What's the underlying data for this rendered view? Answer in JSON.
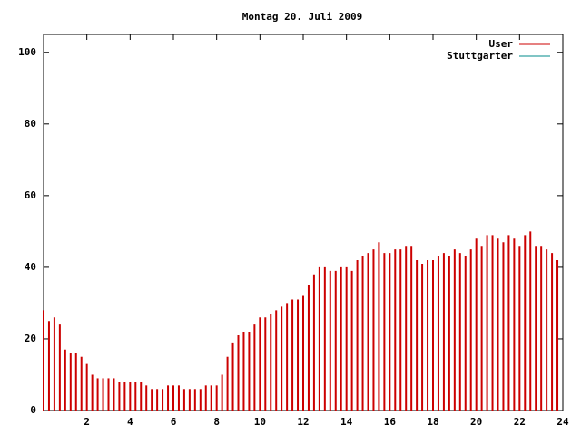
{
  "chart_data": {
    "type": "impulses",
    "title": "Montag 20. Juli 2009",
    "x": [
      0,
      0.25,
      0.5,
      0.75,
      1,
      1.25,
      1.5,
      1.75,
      2,
      2.25,
      2.5,
      2.75,
      3,
      3.25,
      3.5,
      3.75,
      4,
      4.25,
      4.5,
      4.75,
      5,
      5.25,
      5.5,
      5.75,
      6,
      6.25,
      6.5,
      6.75,
      7,
      7.25,
      7.5,
      7.75,
      8,
      8.25,
      8.5,
      8.75,
      9,
      9.25,
      9.5,
      9.75,
      10,
      10.25,
      10.5,
      10.75,
      11,
      11.25,
      11.5,
      11.75,
      12,
      12.25,
      12.5,
      12.75,
      13,
      13.25,
      13.5,
      13.75,
      14,
      14.25,
      14.5,
      14.75,
      15,
      15.25,
      15.5,
      15.75,
      16,
      16.25,
      16.5,
      16.75,
      17,
      17.25,
      17.5,
      17.75,
      18,
      18.25,
      18.5,
      18.75,
      19,
      19.25,
      19.5,
      19.75,
      20,
      20.25,
      20.5,
      20.75,
      21,
      21.25,
      21.5,
      21.75,
      22,
      22.25,
      22.5,
      22.75,
      23,
      23.25,
      23.5,
      23.75
    ],
    "series": [
      {
        "name": "User",
        "color": "#cc0000",
        "values": [
          28,
          25,
          26,
          24,
          17,
          16,
          16,
          15,
          13,
          10,
          9,
          9,
          9,
          9,
          8,
          8,
          8,
          8,
          8,
          7,
          6,
          6,
          6,
          7,
          7,
          7,
          6,
          6,
          6,
          6,
          7,
          7,
          7,
          10,
          15,
          19,
          21,
          22,
          22,
          24,
          26,
          26,
          27,
          28,
          29,
          30,
          31,
          31,
          32,
          35,
          38,
          40,
          40,
          39,
          39,
          40,
          40,
          39,
          42,
          43,
          44,
          45,
          47,
          44,
          44,
          45,
          45,
          46,
          46,
          42,
          41,
          42,
          42,
          43,
          44,
          43,
          45,
          44,
          43,
          45,
          48,
          46,
          49,
          49,
          48,
          47,
          49,
          48,
          46,
          49,
          50,
          46,
          46,
          45,
          44,
          42
        ]
      },
      {
        "name": "Stuttgarter",
        "color": "#008b8b",
        "values": [
          null,
          null,
          null,
          null,
          null,
          null,
          null,
          null,
          null,
          null,
          null,
          null,
          null,
          null,
          null,
          null,
          null,
          null,
          null,
          null,
          null,
          null,
          null,
          null,
          null,
          null,
          null,
          null,
          null,
          null,
          null,
          null,
          null,
          null,
          null,
          null,
          null,
          null,
          null,
          null,
          null,
          null,
          null,
          null,
          null,
          null,
          null,
          null,
          null,
          null,
          null,
          null,
          null,
          null,
          null,
          null,
          null,
          null,
          null,
          null,
          null,
          null,
          null,
          null,
          null,
          null,
          null,
          null,
          null,
          null,
          null,
          null,
          null,
          null,
          null,
          null,
          null,
          null,
          null,
          null,
          null,
          null,
          null,
          null,
          null,
          null,
          null,
          null,
          null,
          null,
          null,
          null,
          null,
          null,
          null,
          null
        ]
      }
    ],
    "xlim": [
      0,
      24
    ],
    "xticks": [
      2,
      4,
      6,
      8,
      10,
      12,
      14,
      16,
      18,
      20,
      22,
      24
    ],
    "ylim": [
      0,
      105
    ],
    "yticks": [
      0,
      20,
      40,
      60,
      80,
      100
    ],
    "legend": "top-right"
  }
}
